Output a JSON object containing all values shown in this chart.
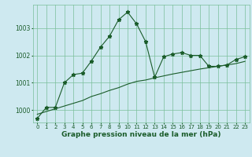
{
  "xlabel": "Graphe pression niveau de la mer (hPa)",
  "background_color": "#cee9f0",
  "plot_bg_color": "#cee9f0",
  "grid_color": "#7abf9a",
  "line_color": "#1a5c2a",
  "xlim": [
    -0.5,
    23.5
  ],
  "ylim": [
    999.55,
    1003.85
  ],
  "yticks": [
    1000,
    1001,
    1002,
    1003
  ],
  "xticks": [
    0,
    1,
    2,
    3,
    4,
    5,
    6,
    7,
    8,
    9,
    10,
    11,
    12,
    13,
    14,
    15,
    16,
    17,
    18,
    19,
    20,
    21,
    22,
    23
  ],
  "series1_x": [
    0,
    1,
    2,
    3,
    4,
    5,
    6,
    7,
    8,
    9,
    10,
    11,
    12,
    13,
    14,
    15,
    16,
    17,
    18,
    19,
    20,
    21,
    22,
    23
  ],
  "series1_y": [
    999.7,
    1000.1,
    1000.1,
    1001.0,
    1001.3,
    1001.35,
    1001.8,
    1002.3,
    1002.7,
    1003.3,
    1003.58,
    1003.15,
    1002.5,
    1001.2,
    1001.95,
    1002.05,
    1002.1,
    1002.0,
    1002.0,
    1001.6,
    1001.6,
    1001.65,
    1001.85,
    1001.95
  ],
  "series2_x": [
    0,
    1,
    2,
    3,
    4,
    5,
    6,
    7,
    8,
    9,
    10,
    11,
    12,
    13,
    14,
    15,
    16,
    17,
    18,
    19,
    20,
    21,
    22,
    23
  ],
  "series2_y": [
    999.85,
    999.95,
    1000.05,
    1000.15,
    1000.25,
    1000.35,
    1000.5,
    1000.6,
    1000.72,
    1000.82,
    1000.95,
    1001.05,
    1001.1,
    1001.18,
    1001.25,
    1001.32,
    1001.38,
    1001.44,
    1001.5,
    1001.55,
    1001.6,
    1001.65,
    1001.7,
    1001.78
  ],
  "marker": "*",
  "markersize": 3.5,
  "linewidth": 0.8,
  "xlabel_fontsize": 6.5,
  "tick_fontsize": 5.0,
  "ytick_fontsize": 5.5
}
